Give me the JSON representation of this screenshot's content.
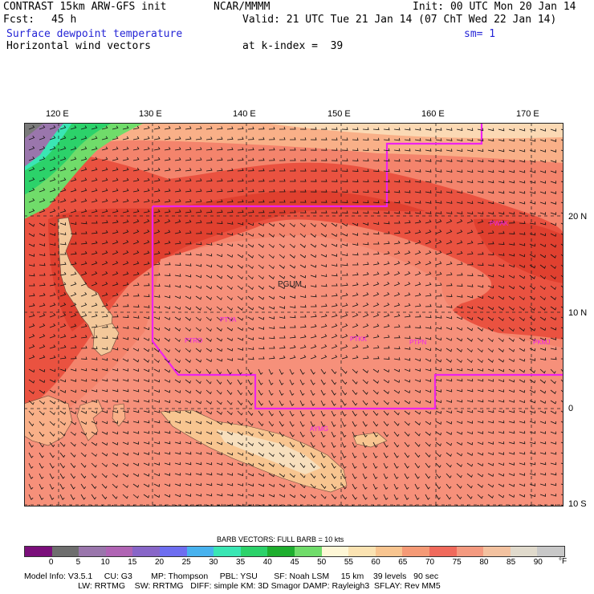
{
  "header": {
    "model_title": "CONTRAST 15km ARW-GFS init",
    "org": "NCAR/MMMM",
    "init": "Init: 00 UTC Mon 20 Jan 14",
    "fcst_label": "Fcst:",
    "fcst_value": "45 h",
    "valid": "Valid: 21 UTC Tue 21 Jan 14 (07 ChT Wed 22 Jan 14)",
    "field1": "Surface dewpoint temperature",
    "smoothing": "sm= 1",
    "field2": "Horizontal wind vectors",
    "level": "at k-index =  39"
  },
  "map": {
    "lon_labels": [
      "120 E",
      "130 E",
      "140 E",
      "150 E",
      "160 E",
      "170 E"
    ],
    "lat_labels": [
      "20 N",
      "10 N",
      "0",
      "10 S"
    ],
    "stations": [
      "PGUM",
      "PTYA",
      "PTKK",
      "PTRO",
      "PTPN",
      "PKMJ",
      "PWAK",
      "AYMG"
    ],
    "colors": {
      "boundary": "#ee22ee",
      "land_tan": "#f3c89a",
      "land_light": "#f7dfbd"
    }
  },
  "legend": {
    "title": "BARB VECTORS:  FULL BARB = 10 kts",
    "ticks": [
      "0",
      "5",
      "10",
      "15",
      "20",
      "25",
      "30",
      "35",
      "40",
      "45",
      "50",
      "55",
      "60",
      "65",
      "70",
      "75",
      "80",
      "85",
      "90"
    ],
    "unit": "°F",
    "colors": [
      "#7b0f7b",
      "#6e6e6e",
      "#9a76ac",
      "#b064b4",
      "#8866c8",
      "#6e6ef0",
      "#48b2ee",
      "#3ae6b4",
      "#2cd26a",
      "#1eae2e",
      "#70dc6a",
      "#fef7d6",
      "#fbe3b2",
      "#f8c590",
      "#f59a76",
      "#f06a5c",
      "#f49a80",
      "#f3c2a0",
      "#e0dacc",
      "#c8c8c8"
    ]
  },
  "model_info": {
    "line1": "Model Info: V3.5.1     CU: G3        MP: Thompson     PBL: YSU       SF: Noah LSM     15 km    39 levels   90 sec",
    "line2": "                       LW: RRTMG    SW: RRTMG   DIFF: simple KM: 3D Smagor DAMP: Rayleigh3  SFLAY: Rev MM5"
  }
}
